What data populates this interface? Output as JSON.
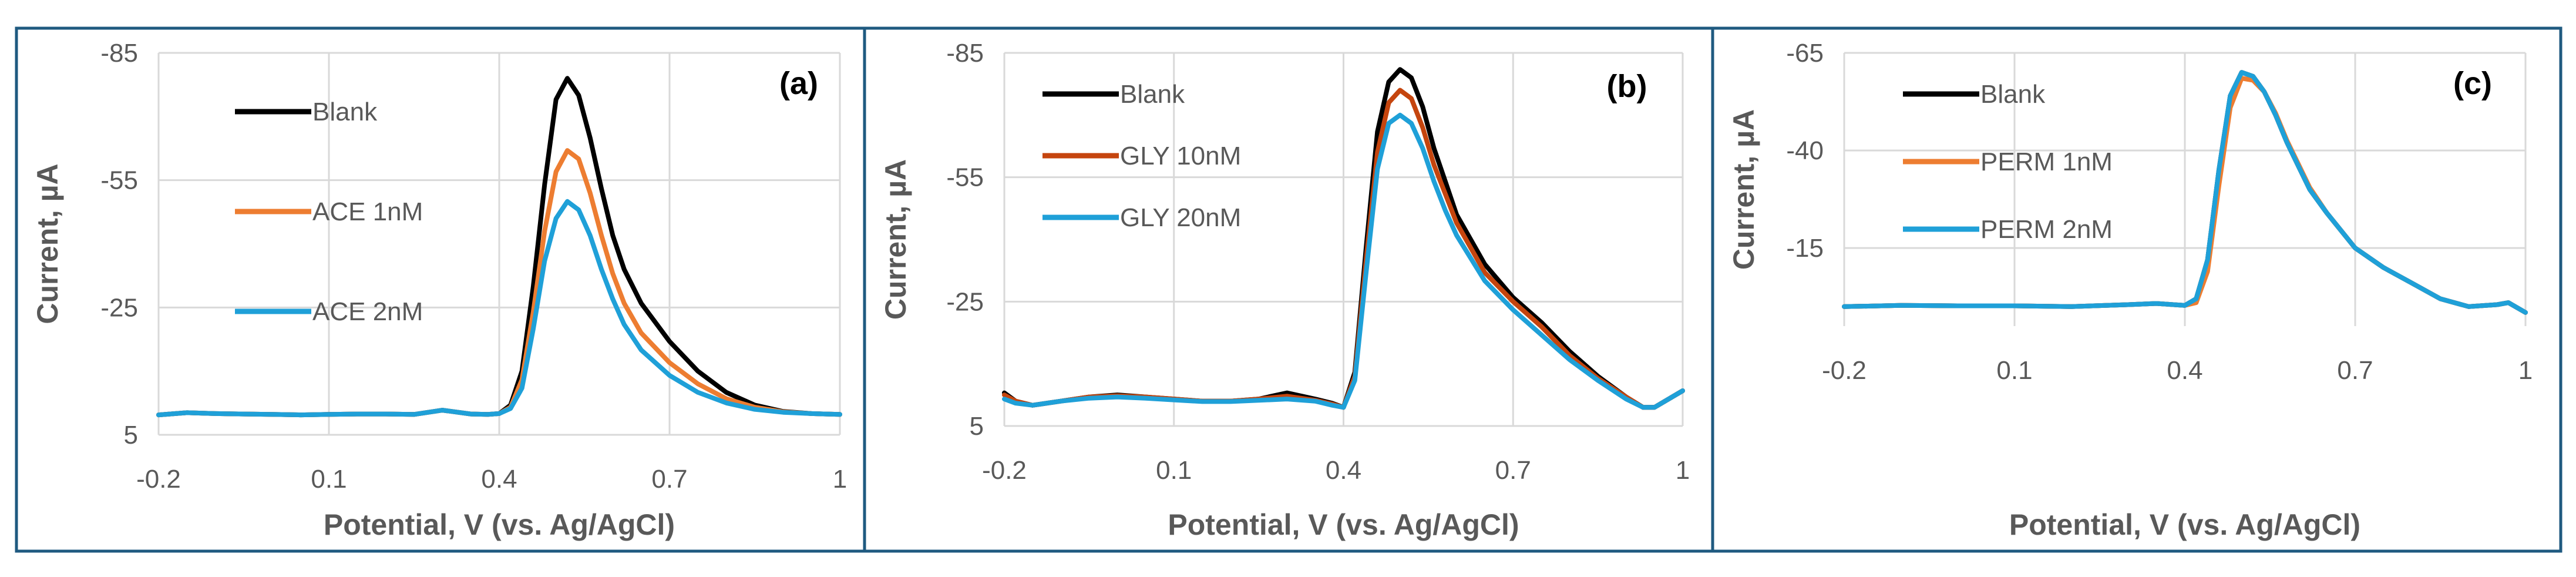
{
  "chart_data": [
    {
      "type": "line",
      "panel_label": "(a)",
      "xlabel": "Potential, V (vs. Ag/AgCl)",
      "ylabel": "Current, µA",
      "xlim": [
        -0.2,
        1.0
      ],
      "ylim": [
        5,
        -85
      ],
      "x_ticks": [
        "-0.2",
        "0.1",
        "0.4",
        "0.7",
        "1"
      ],
      "x_tick_values": [
        -0.2,
        0.1,
        0.4,
        0.7,
        1.0
      ],
      "y_ticks": [
        "-85",
        "-55",
        "-25",
        "5"
      ],
      "y_tick_values": [
        -85,
        -55,
        -25,
        5
      ],
      "legend_spread": true,
      "series": [
        {
          "name": "Blank",
          "color": "#000000",
          "x": [
            -0.2,
            -0.15,
            -0.1,
            -0.05,
            0,
            0.05,
            0.1,
            0.15,
            0.2,
            0.25,
            0.3,
            0.35,
            0.38,
            0.4,
            0.42,
            0.44,
            0.46,
            0.48,
            0.5,
            0.52,
            0.54,
            0.56,
            0.58,
            0.6,
            0.62,
            0.65,
            0.7,
            0.75,
            0.8,
            0.85,
            0.9,
            0.95,
            1.0
          ],
          "y": [
            0.3,
            -0.2,
            0,
            0.1,
            0.2,
            0.3,
            0.2,
            0.1,
            0.1,
            0.2,
            -0.8,
            0.1,
            0.2,
            0,
            -2,
            -10,
            -30,
            -54,
            -74,
            -79,
            -75,
            -65,
            -53,
            -42,
            -34,
            -26,
            -17,
            -10,
            -5,
            -2,
            -0.5,
            0,
            0.2
          ]
        },
        {
          "name": "ACE 1nM",
          "color": "#ed7d31",
          "x": [
            -0.2,
            -0.15,
            -0.1,
            -0.05,
            0,
            0.05,
            0.1,
            0.15,
            0.2,
            0.25,
            0.3,
            0.35,
            0.38,
            0.4,
            0.42,
            0.44,
            0.46,
            0.48,
            0.5,
            0.52,
            0.54,
            0.56,
            0.58,
            0.6,
            0.62,
            0.65,
            0.7,
            0.75,
            0.8,
            0.85,
            0.9,
            0.95,
            1.0
          ],
          "y": [
            0.3,
            -0.2,
            0,
            0.1,
            0.2,
            0.3,
            0.2,
            0.1,
            0.1,
            0.2,
            -0.8,
            0.1,
            0.2,
            0,
            -1.5,
            -8,
            -24,
            -43,
            -57,
            -62,
            -60,
            -52,
            -42,
            -33,
            -26,
            -19,
            -12,
            -7,
            -3.5,
            -1.5,
            -0.4,
            0,
            0.2
          ]
        },
        {
          "name": "ACE 2nM",
          "color": "#1fa0d8",
          "x": [
            -0.2,
            -0.15,
            -0.1,
            -0.05,
            0,
            0.05,
            0.1,
            0.15,
            0.2,
            0.25,
            0.3,
            0.35,
            0.38,
            0.4,
            0.42,
            0.44,
            0.46,
            0.48,
            0.5,
            0.52,
            0.54,
            0.56,
            0.58,
            0.6,
            0.62,
            0.65,
            0.7,
            0.75,
            0.8,
            0.85,
            0.9,
            0.95,
            1.0
          ],
          "y": [
            0.3,
            -0.2,
            0,
            0.1,
            0.2,
            0.3,
            0.2,
            0.1,
            0.1,
            0.2,
            -0.8,
            0.1,
            0.2,
            0,
            -1.2,
            -6,
            -20,
            -36,
            -46,
            -50,
            -48,
            -42,
            -34,
            -27,
            -21,
            -15,
            -9,
            -5,
            -2.5,
            -1,
            -0.3,
            0,
            0.2
          ]
        }
      ]
    },
    {
      "type": "line",
      "panel_label": "(b)",
      "xlabel": "Potential, V (vs. Ag/AgCl)",
      "ylabel": "Current, µA",
      "xlim": [
        -0.2,
        1.0
      ],
      "ylim": [
        5,
        -85
      ],
      "x_ticks": [
        "-0.2",
        "0.1",
        "0.4",
        "0.7",
        "1"
      ],
      "x_tick_values": [
        -0.2,
        0.1,
        0.4,
        0.7,
        1.0
      ],
      "y_ticks": [
        "-85",
        "-55",
        "-25",
        "5"
      ],
      "y_tick_values": [
        -85,
        -55,
        -25,
        5
      ],
      "legend_spread": false,
      "series": [
        {
          "name": "Blank",
          "color": "#000000",
          "x": [
            -0.2,
            -0.18,
            -0.15,
            -0.1,
            -0.05,
            0,
            0.05,
            0.1,
            0.15,
            0.2,
            0.25,
            0.3,
            0.35,
            0.38,
            0.4,
            0.42,
            0.44,
            0.46,
            0.48,
            0.5,
            0.52,
            0.54,
            0.56,
            0.58,
            0.6,
            0.65,
            0.7,
            0.75,
            0.8,
            0.85,
            0.9,
            0.93,
            0.95,
            1.0
          ],
          "y": [
            -3,
            -1,
            0,
            -1,
            -2,
            -2.5,
            -2,
            -1.5,
            -1,
            -1,
            -1.5,
            -3,
            -1.5,
            -0.5,
            0.5,
            -8,
            -38,
            -66,
            -78,
            -81,
            -79,
            -72,
            -62,
            -54,
            -46,
            -34,
            -26,
            -20,
            -13,
            -7,
            -2,
            0.5,
            0.5,
            -3.5
          ]
        },
        {
          "name": "GLY 10nM",
          "color": "#c5450e",
          "x": [
            -0.2,
            -0.18,
            -0.15,
            -0.1,
            -0.05,
            0,
            0.05,
            0.1,
            0.15,
            0.2,
            0.25,
            0.3,
            0.35,
            0.38,
            0.4,
            0.42,
            0.44,
            0.46,
            0.48,
            0.5,
            0.52,
            0.54,
            0.56,
            0.58,
            0.6,
            0.65,
            0.7,
            0.75,
            0.8,
            0.85,
            0.9,
            0.93,
            0.95,
            1.0
          ],
          "y": [
            -2.5,
            -1,
            0,
            -1,
            -2,
            -2.3,
            -2,
            -1.5,
            -1,
            -1,
            -1.5,
            -2.2,
            -1.2,
            -0.3,
            0.5,
            -7,
            -35,
            -61,
            -73,
            -76,
            -74,
            -67,
            -58,
            -51,
            -44,
            -32,
            -25,
            -19,
            -12,
            -6.5,
            -2,
            0.5,
            0.5,
            -3.5
          ]
        },
        {
          "name": "GLY 20nM",
          "color": "#1fa0d8",
          "x": [
            -0.2,
            -0.18,
            -0.15,
            -0.1,
            -0.05,
            0,
            0.05,
            0.1,
            0.15,
            0.2,
            0.25,
            0.3,
            0.35,
            0.38,
            0.4,
            0.42,
            0.44,
            0.46,
            0.48,
            0.5,
            0.52,
            0.54,
            0.56,
            0.58,
            0.6,
            0.65,
            0.7,
            0.75,
            0.8,
            0.85,
            0.9,
            0.93,
            0.95,
            1.0
          ],
          "y": [
            -1.5,
            -0.5,
            0,
            -1,
            -1.7,
            -2,
            -1.7,
            -1.3,
            -0.9,
            -0.9,
            -1.2,
            -1.5,
            -1,
            0,
            0.5,
            -6,
            -32,
            -57,
            -68,
            -70,
            -68,
            -62,
            -54,
            -47,
            -41,
            -30,
            -23,
            -17,
            -11,
            -6,
            -1.5,
            0.5,
            0.5,
            -3.5
          ]
        }
      ]
    },
    {
      "type": "line",
      "panel_label": "(c)",
      "xlabel": "Potential, V (vs. Ag/AgCl)",
      "ylabel": "Current, µA",
      "xlim": [
        -0.2,
        1.0
      ],
      "ylim": [
        5,
        -65
      ],
      "x_ticks": [
        "-0.2",
        "0.1",
        "0.4",
        "0.7",
        "1"
      ],
      "x_tick_values": [
        -0.2,
        0.1,
        0.4,
        0.7,
        1.0
      ],
      "y_ticks": [
        "-65",
        "-40",
        "-15"
      ],
      "y_tick_values": [
        -65,
        -40,
        -15
      ],
      "legend_spread": false,
      "series": [
        {
          "name": "Blank",
          "color": "#000000",
          "x": [
            -0.2,
            -0.1,
            0,
            0.1,
            0.2,
            0.3,
            0.35,
            0.38,
            0.4,
            0.42,
            0.44,
            0.46,
            0.48,
            0.5,
            0.52,
            0.54,
            0.56,
            0.58,
            0.6,
            0.62,
            0.65,
            0.7,
            0.75,
            0.8,
            0.85,
            0.9,
            0.95,
            0.97,
            1.0
          ],
          "y": [
            0,
            -0.3,
            -0.2,
            -0.2,
            0,
            -0.5,
            -0.8,
            -0.5,
            -0.3,
            -2,
            -12,
            -35,
            -54,
            -60,
            -59,
            -55,
            -49,
            -42,
            -36,
            -30,
            -24,
            -15,
            -10,
            -6,
            -2,
            0,
            -0.5,
            -1,
            1.5
          ]
        },
        {
          "name": "PERM 1nM",
          "color": "#ed7d31",
          "x": [
            -0.2,
            -0.1,
            0,
            0.1,
            0.2,
            0.3,
            0.35,
            0.38,
            0.4,
            0.42,
            0.44,
            0.46,
            0.48,
            0.5,
            0.52,
            0.54,
            0.56,
            0.58,
            0.6,
            0.62,
            0.65,
            0.7,
            0.75,
            0.8,
            0.85,
            0.9,
            0.95,
            0.97,
            1.0
          ],
          "y": [
            0,
            -0.3,
            -0.2,
            -0.2,
            0,
            -0.5,
            -0.8,
            -0.5,
            -0.3,
            -1,
            -9,
            -31,
            -51,
            -58.5,
            -58,
            -55,
            -49.5,
            -42.5,
            -36.5,
            -30.5,
            -24,
            -15,
            -10,
            -6,
            -2,
            0,
            -0.5,
            -1,
            1.5
          ]
        },
        {
          "name": "PERM 2nM",
          "color": "#1fa0d8",
          "x": [
            -0.2,
            -0.1,
            0,
            0.1,
            0.2,
            0.3,
            0.35,
            0.38,
            0.4,
            0.42,
            0.44,
            0.46,
            0.48,
            0.5,
            0.52,
            0.54,
            0.56,
            0.58,
            0.6,
            0.62,
            0.65,
            0.7,
            0.75,
            0.8,
            0.85,
            0.9,
            0.95,
            0.97,
            1.0
          ],
          "y": [
            0,
            -0.3,
            -0.2,
            -0.2,
            0,
            -0.5,
            -0.8,
            -0.5,
            -0.3,
            -2,
            -12,
            -35,
            -54,
            -60,
            -59,
            -55,
            -49,
            -42,
            -36,
            -30,
            -24,
            -15,
            -10,
            -6,
            -2,
            0,
            -0.5,
            -1,
            1.5
          ]
        }
      ]
    }
  ]
}
